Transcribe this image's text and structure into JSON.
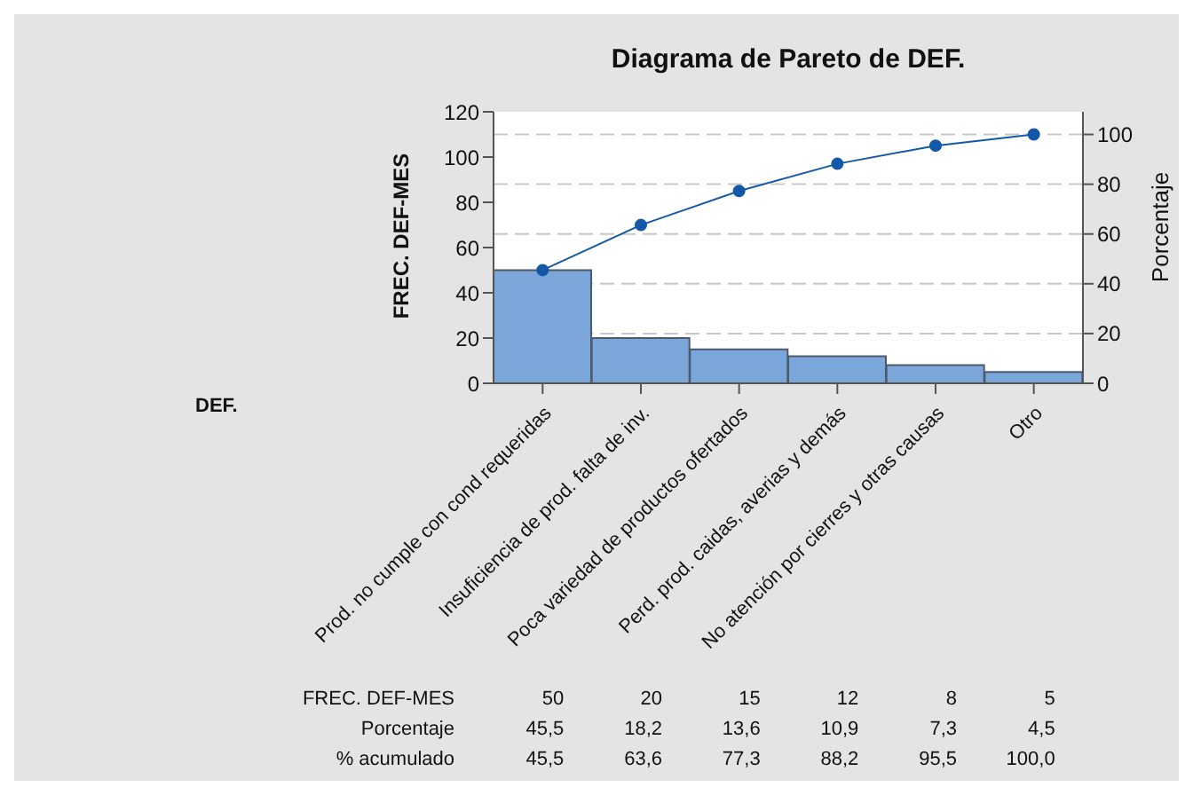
{
  "chart_data": {
    "type": "bar",
    "title": "Diagrama de Pareto de DEF.",
    "xlabel": "DEF.",
    "ylabel": "FREC. DEF-MES",
    "y2label": "Porcentaje",
    "categories": [
      "Prod. no cumple con cond requeridas",
      "Insuficiencia de prod. falta de inv.",
      "Poca variedad de productos ofertados",
      "Perd. prod. caidas, averias y demás",
      "No atención por cierres y otras causas",
      "Otro"
    ],
    "series": [
      {
        "color": "#7ba6da",
        "values": [
          50,
          20,
          15,
          12,
          8,
          5
        ],
        "value_labels": [
          "50",
          "20",
          "15",
          "12",
          "8",
          "5"
        ]
      },
      {
        "type": "line",
        "axis": "y2",
        "color": "#1459a8",
        "values": [
          45.5,
          63.6,
          77.3,
          88.2,
          95.5,
          100.0
        ],
        "value_labels": [
          "45,5",
          "63,6",
          "77,3",
          "88,2",
          "95,5",
          "100,0"
        ]
      }
    ],
    "annotations": [
      "FREC. DEF-MES",
      "Porcentaje",
      "% acumulado",
      "45,5",
      "18,2",
      "13,6",
      "10,9",
      "7,3",
      "4,5"
    ],
    "ylim": [
      0,
      120
    ],
    "yticks": [
      0,
      20,
      40,
      60,
      80,
      100,
      120
    ],
    "y2lim": [
      0,
      109.1
    ],
    "y2ticks": [
      0,
      20,
      40,
      60,
      80,
      100
    ],
    "grid": "y2",
    "marker": "circle",
    "line_style": "solid"
  }
}
